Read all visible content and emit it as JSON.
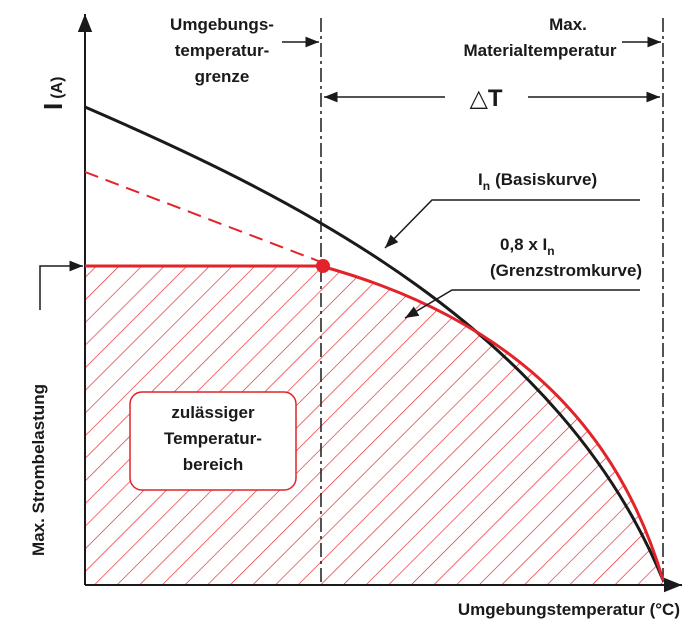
{
  "y_axis": {
    "label": "I",
    "unit": "(A)"
  },
  "x_axis": {
    "label": "Umgebungstemperatur (°C)"
  },
  "ambient_limit": {
    "lines": [
      "Umgebungs-",
      "temperatur-",
      "grenze"
    ]
  },
  "material_max": {
    "lines": [
      "Max.",
      "Materialtemperatur"
    ]
  },
  "delta": "△T",
  "basis_curve": {
    "symbol": "I",
    "subscript": "n",
    "name": "(Basiskurve)"
  },
  "limit_curve": {
    "prefix": "0,8 x I",
    "subscript": "n",
    "name": "(Grenzstromkurve)"
  },
  "max_load": "Max. Strombelastung",
  "region": {
    "lines": [
      "zulässiger",
      "Temperatur-",
      "bereich"
    ]
  }
}
